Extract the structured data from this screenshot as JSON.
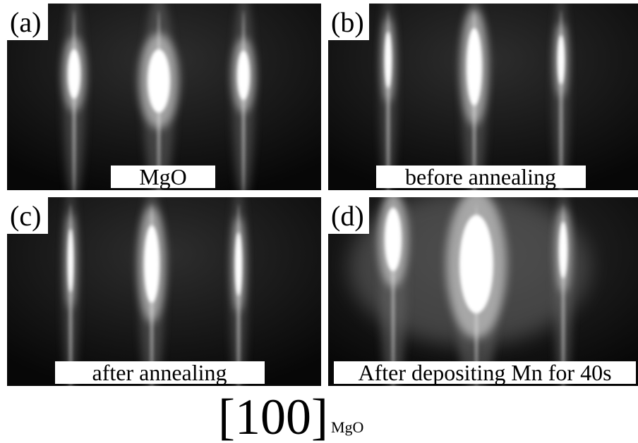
{
  "panels": [
    {
      "label": "(a)",
      "caption": "MgO"
    },
    {
      "label": "(b)",
      "caption": "before annealing"
    },
    {
      "label": "(c)",
      "caption": "after annealing"
    },
    {
      "label": "(d)",
      "caption": "After depositing Mn for 40s"
    }
  ],
  "direction": {
    "text": "[100]",
    "subscript": "MgO"
  }
}
